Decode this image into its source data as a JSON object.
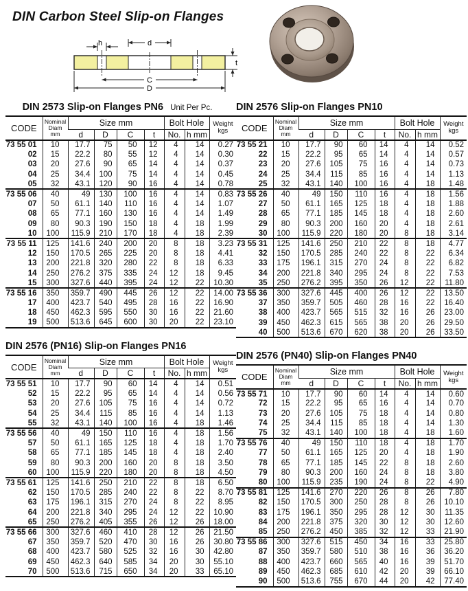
{
  "page": {
    "title": "DIN Carbon Steel Slip-on Flanges"
  },
  "diagram": {
    "labels": {
      "h": "h",
      "d": "d",
      "C": "C",
      "D": "D",
      "t": "t"
    }
  },
  "headers": {
    "code": "CODE",
    "nominal_line1": "Nominal",
    "nominal_line2": "Diam",
    "nominal_line3": "mm",
    "size": "Size mm",
    "d": "d",
    "D": "D",
    "C": "C",
    "t": "t",
    "bolt": "Bolt Hole",
    "no": "No.",
    "h_mm": "h mm",
    "weight_line1": "Weight",
    "weight_line2": "kgs"
  },
  "tables": [
    {
      "title": "DIN 2573 Slip-on Flanges PN6",
      "note": "Unit Per Pc.",
      "groups": [
        [
          [
            "73 55 01",
            "10",
            "17.7",
            "75",
            "50",
            "12",
            "4",
            "14",
            "0.27"
          ],
          [
            "02",
            "15",
            "22.2",
            "80",
            "55",
            "12",
            "4",
            "14",
            "0.30"
          ],
          [
            "03",
            "20",
            "27.6",
            "90",
            "65",
            "14",
            "4",
            "14",
            "0.37"
          ],
          [
            "04",
            "25",
            "34.4",
            "100",
            "75",
            "14",
            "4",
            "14",
            "0.45"
          ],
          [
            "05",
            "32",
            "43.1",
            "120",
            "90",
            "16",
            "4",
            "14",
            "0.78"
          ]
        ],
        [
          [
            "73 55 06",
            "40",
            "49",
            "130",
            "100",
            "16",
            "4",
            "14",
            "0.83"
          ],
          [
            "07",
            "50",
            "61.1",
            "140",
            "110",
            "16",
            "4",
            "14",
            "1.07"
          ],
          [
            "08",
            "65",
            "77.1",
            "160",
            "130",
            "16",
            "4",
            "14",
            "1.49"
          ],
          [
            "09",
            "80",
            "90.3",
            "190",
            "150",
            "18",
            "4",
            "18",
            "1.99"
          ],
          [
            "10",
            "100",
            "115.9",
            "210",
            "170",
            "18",
            "4",
            "18",
            "2.39"
          ]
        ],
        [
          [
            "73 55 11",
            "125",
            "141.6",
            "240",
            "200",
            "20",
            "8",
            "18",
            "3.23"
          ],
          [
            "12",
            "150",
            "170.5",
            "265",
            "225",
            "20",
            "8",
            "18",
            "4.41"
          ],
          [
            "13",
            "200",
            "221.8",
            "320",
            "280",
            "22",
            "8",
            "18",
            "6.33"
          ],
          [
            "14",
            "250",
            "276.2",
            "375",
            "335",
            "24",
            "12",
            "18",
            "9.45"
          ],
          [
            "15",
            "300",
            "327.6",
            "440",
            "395",
            "24",
            "12",
            "22",
            "10.30"
          ]
        ],
        [
          [
            "73 55 16",
            "350",
            "359.7",
            "490",
            "445",
            "26",
            "12",
            "22",
            "14.00"
          ],
          [
            "17",
            "400",
            "423.7",
            "540",
            "495",
            "28",
            "16",
            "22",
            "16.90"
          ],
          [
            "18",
            "450",
            "462.3",
            "595",
            "550",
            "30",
            "16",
            "22",
            "21.60"
          ],
          [
            "19",
            "500",
            "513.6",
            "645",
            "600",
            "30",
            "20",
            "22",
            "23.10"
          ]
        ]
      ]
    },
    {
      "title": "DIN 2576 Slip-on Flanges PN10",
      "note": "",
      "groups": [
        [
          [
            "73 55 21",
            "10",
            "17.7",
            "90",
            "60",
            "14",
            "4",
            "14",
            "0.52"
          ],
          [
            "22",
            "15",
            "22.2",
            "95",
            "65",
            "14",
            "4",
            "14",
            "0.57"
          ],
          [
            "23",
            "20",
            "27.6",
            "105",
            "75",
            "16",
            "4",
            "14",
            "0.73"
          ],
          [
            "24",
            "25",
            "34.4",
            "115",
            "85",
            "16",
            "4",
            "14",
            "1.13"
          ],
          [
            "25",
            "32",
            "43.1",
            "140",
            "100",
            "16",
            "4",
            "18",
            "1.48"
          ]
        ],
        [
          [
            "73 55 26",
            "40",
            "49",
            "150",
            "110",
            "16",
            "4",
            "18",
            "1.56"
          ],
          [
            "27",
            "50",
            "61.1",
            "165",
            "125",
            "18",
            "4",
            "18",
            "1.88"
          ],
          [
            "28",
            "65",
            "77.1",
            "185",
            "145",
            "18",
            "4",
            "18",
            "2.60"
          ],
          [
            "29",
            "80",
            "90.3",
            "200",
            "160",
            "20",
            "4",
            "18",
            "2.61"
          ],
          [
            "30",
            "100",
            "115.9",
            "220",
            "180",
            "20",
            "8",
            "18",
            "3.14"
          ]
        ],
        [
          [
            "73 55 31",
            "125",
            "141.6",
            "250",
            "210",
            "22",
            "8",
            "18",
            "4.77"
          ],
          [
            "32",
            "150",
            "170.5",
            "285",
            "240",
            "22",
            "8",
            "22",
            "6.34"
          ],
          [
            "33",
            "175",
            "196.1",
            "315",
            "270",
            "24",
            "8",
            "22",
            "6.82"
          ],
          [
            "34",
            "200",
            "221.8",
            "340",
            "295",
            "24",
            "8",
            "22",
            "7.53"
          ],
          [
            "35",
            "250",
            "276.2",
            "395",
            "350",
            "26",
            "12",
            "22",
            "11.80"
          ]
        ],
        [
          [
            "73 55 36",
            "300",
            "327.6",
            "445",
            "400",
            "26",
            "12",
            "22",
            "13.50"
          ],
          [
            "37",
            "350",
            "359.7",
            "505",
            "460",
            "28",
            "16",
            "22",
            "16.40"
          ],
          [
            "38",
            "400",
            "423.7",
            "565",
            "515",
            "32",
            "16",
            "26",
            "23.00"
          ],
          [
            "39",
            "450",
            "462.3",
            "615",
            "565",
            "38",
            "20",
            "26",
            "29.50"
          ],
          [
            "40",
            "500",
            "513.6",
            "670",
            "620",
            "38",
            "20",
            "26",
            "33.50"
          ]
        ]
      ]
    },
    {
      "title": "DIN 2576 (PN16) Slip-on Flanges PN16",
      "note": "",
      "groups": [
        [
          [
            "73 55 51",
            "10",
            "17.7",
            "90",
            "60",
            "14",
            "4",
            "14",
            "0.51"
          ],
          [
            "52",
            "15",
            "22.2",
            "95",
            "65",
            "14",
            "4",
            "14",
            "0.56"
          ],
          [
            "53",
            "20",
            "27.6",
            "105",
            "75",
            "16",
            "4",
            "14",
            "0.72"
          ],
          [
            "54",
            "25",
            "34.4",
            "115",
            "85",
            "16",
            "4",
            "14",
            "1.13"
          ],
          [
            "55",
            "32",
            "43.1",
            "140",
            "100",
            "16",
            "4",
            "18",
            "1.46"
          ]
        ],
        [
          [
            "73 55 56",
            "40",
            "49",
            "150",
            "110",
            "16",
            "4",
            "18",
            "1.56"
          ],
          [
            "57",
            "50",
            "61.1",
            "165",
            "125",
            "18",
            "4",
            "18",
            "1.70"
          ],
          [
            "58",
            "65",
            "77.1",
            "185",
            "145",
            "18",
            "4",
            "18",
            "2.40"
          ],
          [
            "59",
            "80",
            "90.3",
            "200",
            "160",
            "20",
            "8",
            "18",
            "3.50"
          ],
          [
            "60",
            "100",
            "115.9",
            "220",
            "180",
            "20",
            "8",
            "18",
            "4.50"
          ]
        ],
        [
          [
            "73 55 61",
            "125",
            "141.6",
            "250",
            "210",
            "22",
            "8",
            "18",
            "6.50"
          ],
          [
            "62",
            "150",
            "170.5",
            "285",
            "240",
            "22",
            "8",
            "22",
            "8.70"
          ],
          [
            "63",
            "175",
            "196.1",
            "315",
            "270",
            "24",
            "8",
            "22",
            "8.95"
          ],
          [
            "64",
            "200",
            "221.8",
            "340",
            "295",
            "24",
            "12",
            "22",
            "10.90"
          ],
          [
            "65",
            "250",
            "276.2",
            "405",
            "355",
            "26",
            "12",
            "26",
            "18.00"
          ]
        ],
        [
          [
            "73 55 66",
            "300",
            "327.6",
            "460",
            "410",
            "28",
            "12",
            "26",
            "21.50"
          ],
          [
            "67",
            "350",
            "359.7",
            "520",
            "470",
            "30",
            "16",
            "26",
            "30.80"
          ],
          [
            "68",
            "400",
            "423.7",
            "580",
            "525",
            "32",
            "16",
            "30",
            "42.80"
          ],
          [
            "69",
            "450",
            "462.3",
            "640",
            "585",
            "34",
            "20",
            "30",
            "55.10"
          ],
          [
            "70",
            "500",
            "513.6",
            "715",
            "650",
            "34",
            "20",
            "33",
            "65.10"
          ]
        ]
      ]
    },
    {
      "title": "DIN 2576 (PN40) Slip-on Flanges PN40",
      "note": "",
      "groups": [
        [
          [
            "73 55 71",
            "10",
            "17.7",
            "90",
            "60",
            "14",
            "4",
            "14",
            "0.60"
          ],
          [
            "72",
            "15",
            "22.2",
            "95",
            "65",
            "16",
            "4",
            "14",
            "0.70"
          ],
          [
            "73",
            "20",
            "27.6",
            "105",
            "75",
            "18",
            "4",
            "14",
            "0.80"
          ],
          [
            "74",
            "25",
            "34.4",
            "115",
            "85",
            "18",
            "4",
            "14",
            "1.30"
          ],
          [
            "75",
            "32",
            "43.1",
            "140",
            "100",
            "18",
            "4",
            "18",
            "1.60"
          ]
        ],
        [
          [
            "73 55 76",
            "40",
            "49",
            "150",
            "110",
            "18",
            "4",
            "18",
            "1.70"
          ],
          [
            "77",
            "50",
            "61.1",
            "165",
            "125",
            "20",
            "4",
            "18",
            "1.90"
          ],
          [
            "78",
            "65",
            "77.1",
            "185",
            "145",
            "22",
            "8",
            "18",
            "2.60"
          ],
          [
            "79",
            "80",
            "90.3",
            "200",
            "160",
            "24",
            "8",
            "18",
            "3.80"
          ],
          [
            "80",
            "100",
            "115.9",
            "235",
            "190",
            "24",
            "8",
            "22",
            "4.90"
          ]
        ],
        [
          [
            "73 55 81",
            "125",
            "141.6",
            "270",
            "220",
            "26",
            "8",
            "26",
            "7.80"
          ],
          [
            "82",
            "150",
            "170.5",
            "300",
            "250",
            "28",
            "8",
            "26",
            "10.10"
          ],
          [
            "83",
            "175",
            "196.1",
            "350",
            "295",
            "28",
            "12",
            "30",
            "11.35"
          ],
          [
            "84",
            "200",
            "221.8",
            "375",
            "320",
            "30",
            "12",
            "30",
            "12.60"
          ],
          [
            "85",
            "250",
            "276.2",
            "450",
            "385",
            "32",
            "12",
            "33",
            "21.90"
          ]
        ],
        [
          [
            "73 55 86",
            "300",
            "327.6",
            "515",
            "450",
            "34",
            "16",
            "33",
            "25.80"
          ],
          [
            "87",
            "350",
            "359.7",
            "580",
            "510",
            "38",
            "16",
            "36",
            "36.20"
          ],
          [
            "88",
            "400",
            "423.7",
            "660",
            "565",
            "40",
            "16",
            "39",
            "51.70"
          ],
          [
            "89",
            "450",
            "462.3",
            "685",
            "610",
            "42",
            "20",
            "39",
            "66.10"
          ],
          [
            "90",
            "500",
            "513.6",
            "755",
            "670",
            "44",
            "20",
            "42",
            "77.40"
          ]
        ]
      ]
    }
  ]
}
